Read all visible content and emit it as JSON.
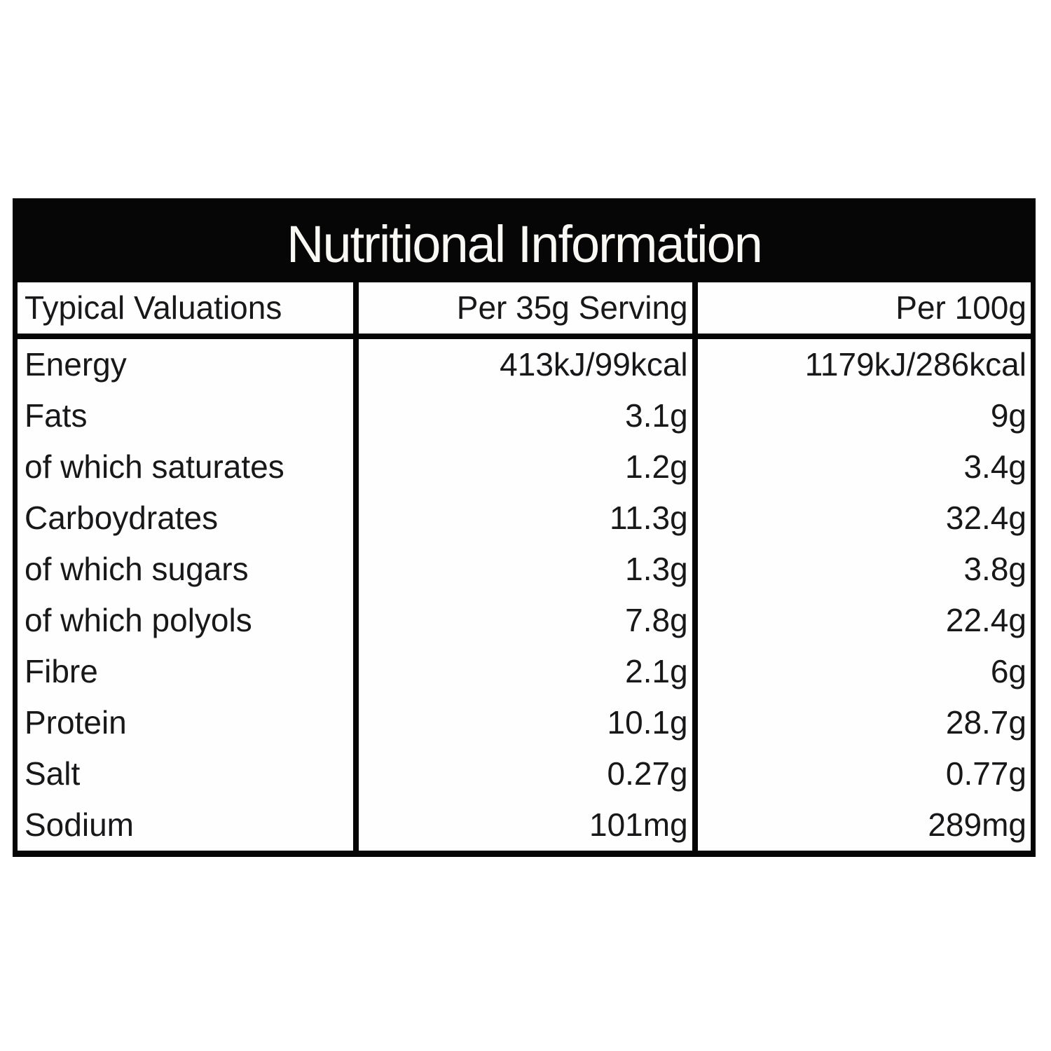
{
  "table": {
    "title": "Nutritional Information",
    "columns": [
      "Typical Valuations",
      "Per 35g Serving",
      "Per 100g"
    ],
    "rows": [
      {
        "label": "Energy",
        "per_serving": "413kJ/99kcal",
        "per_100g": "1179kJ/286kcal"
      },
      {
        "label": "Fats",
        "per_serving": "3.1g",
        "per_100g": "9g"
      },
      {
        "label": "of which saturates",
        "per_serving": "1.2g",
        "per_100g": "3.4g"
      },
      {
        "label": "Carboydrates",
        "per_serving": "11.3g",
        "per_100g": "32.4g"
      },
      {
        "label": "of which sugars",
        "per_serving": "1.3g",
        "per_100g": "3.8g"
      },
      {
        "label": "of which polyols",
        "per_serving": "7.8g",
        "per_100g": "22.4g"
      },
      {
        "label": "Fibre",
        "per_serving": "2.1g",
        "per_100g": "6g"
      },
      {
        "label": "Protein",
        "per_serving": "10.1g",
        "per_100g": "28.7g"
      },
      {
        "label": "Salt",
        "per_serving": "0.27g",
        "per_100g": "0.77g"
      },
      {
        "label": "Sodium",
        "per_serving": "101mg",
        "per_100g": "289mg"
      }
    ],
    "colors": {
      "border": "#060606",
      "title_bg": "#060606",
      "title_text": "#faf8f4",
      "cell_bg": "#fefefe",
      "text": "#18181a"
    }
  }
}
